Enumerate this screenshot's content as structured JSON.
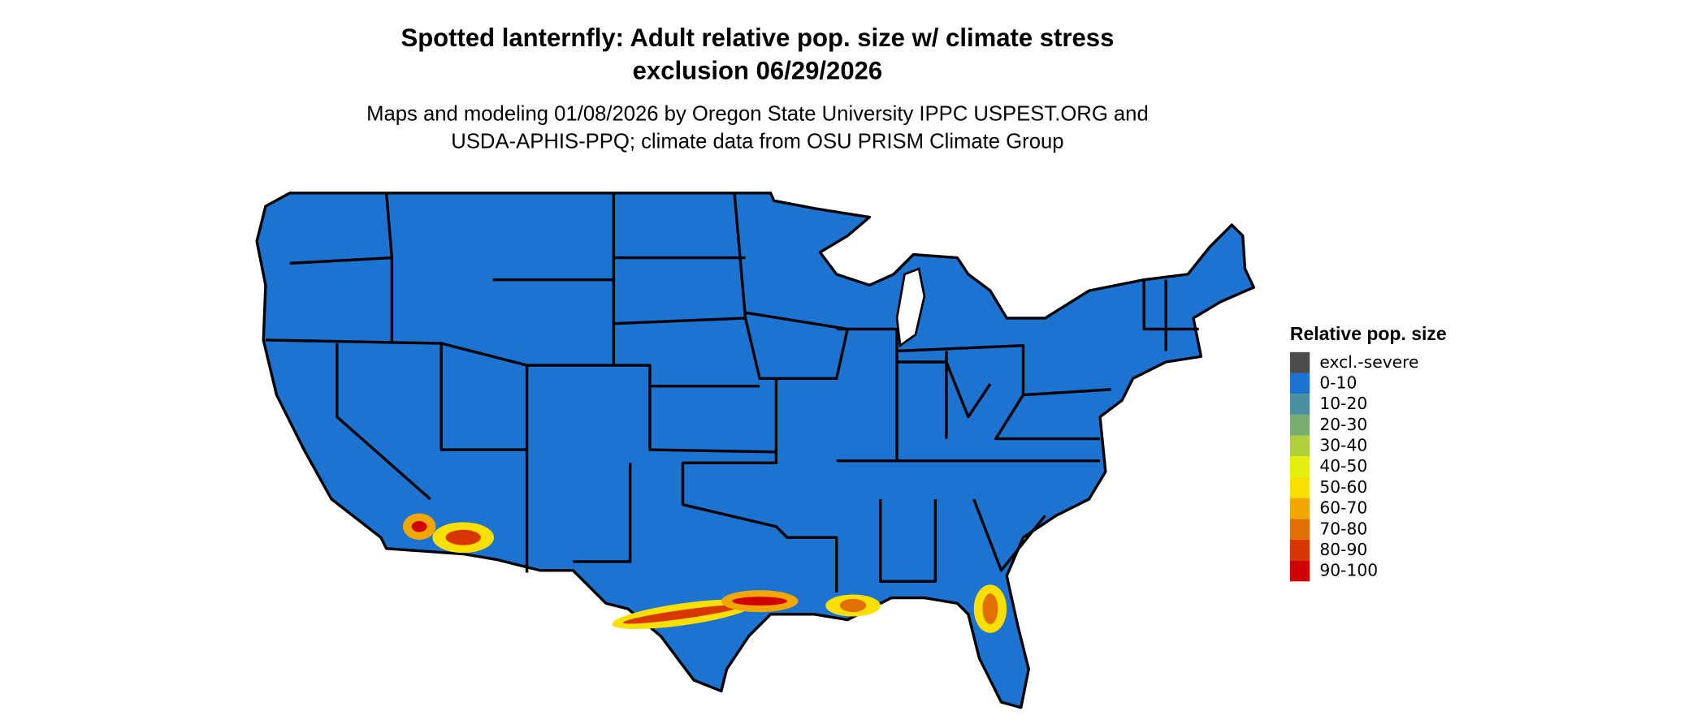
{
  "header": {
    "title_lines": [
      "Spotted lanternfly: Adult relative pop. size w/ climate stress",
      "exclusion 06/29/2026"
    ],
    "subtitle_lines": [
      "Maps and modeling 01/08/2026 by Oregon State University IPPC USPEST.ORG and",
      "USDA-APHIS-PPQ; climate data from OSU PRISM Climate Group"
    ]
  },
  "legend": {
    "title": "Relative pop. size",
    "items": [
      {
        "label": "excl.-severe",
        "color": "#4d4d4d"
      },
      {
        "label": "0-10",
        "color": "#1c73d0"
      },
      {
        "label": "10-20",
        "color": "#4a8fa0"
      },
      {
        "label": "20-30",
        "color": "#78ac70"
      },
      {
        "label": "30-40",
        "color": "#aed13a"
      },
      {
        "label": "40-50",
        "color": "#e4ef10"
      },
      {
        "label": "50-60",
        "color": "#f9e000"
      },
      {
        "label": "60-70",
        "color": "#f0a800"
      },
      {
        "label": "70-80",
        "color": "#e27000"
      },
      {
        "label": "80-90",
        "color": "#d83800"
      },
      {
        "label": "90-100",
        "color": "#d00000"
      }
    ]
  }
}
